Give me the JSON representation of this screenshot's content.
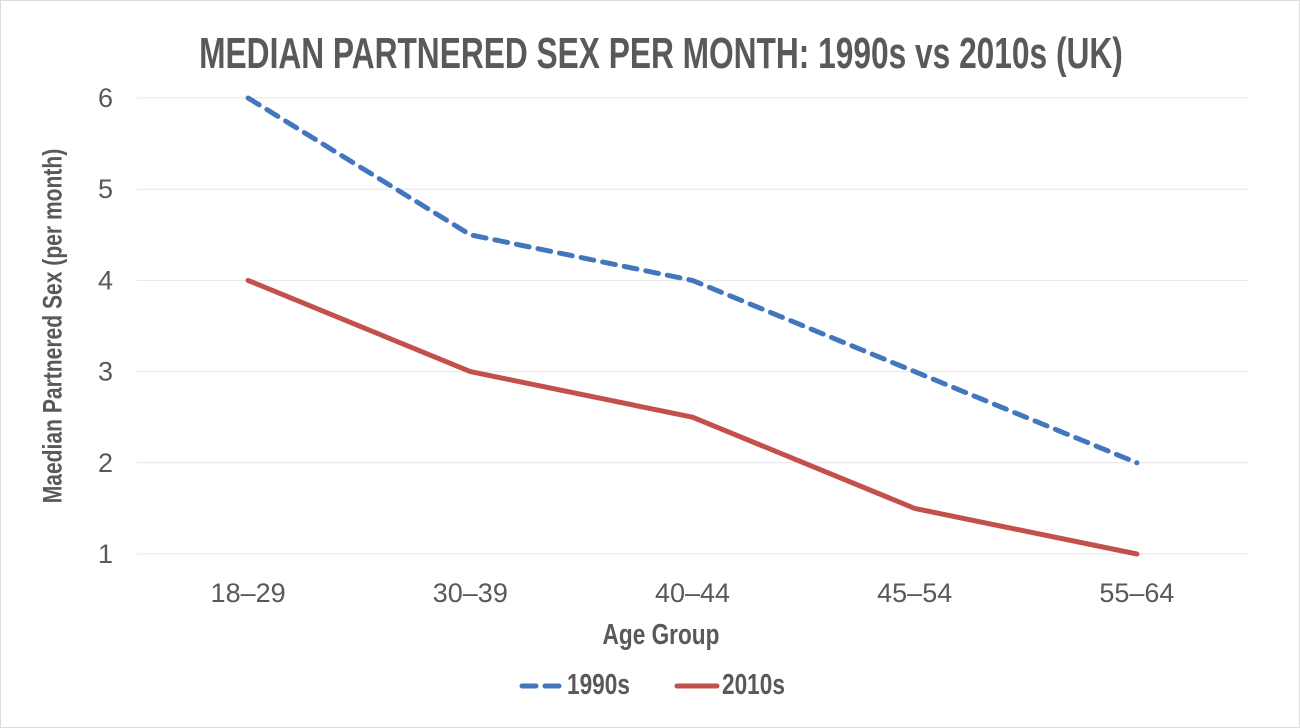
{
  "chart_data": {
    "type": "line",
    "title": "MEDIAN PARTNERED SEX PER MONTH: 1990s vs 2010s (UK)",
    "xlabel": "Age Group",
    "ylabel": "Maedian Partnered Sex (per month)",
    "categories": [
      "18–29",
      "30–39",
      "40–44",
      "45–54",
      "55–64"
    ],
    "series": [
      {
        "name": "1990s",
        "values": [
          6,
          4.5,
          4,
          3,
          2
        ],
        "color": "#4377bd",
        "style": "dashed"
      },
      {
        "name": "2010s",
        "values": [
          4,
          3,
          2.5,
          1.5,
          1
        ],
        "color": "#c4504b",
        "style": "solid"
      }
    ],
    "yticks": [
      1,
      2,
      3,
      4,
      5,
      6
    ],
    "ylim": [
      1,
      6
    ],
    "grid": true,
    "legend_position": "bottom",
    "colors": {
      "text": "#595959",
      "gridline": "#e4e4e4",
      "background": "#ffffff",
      "border": "#dcdcdc"
    }
  }
}
